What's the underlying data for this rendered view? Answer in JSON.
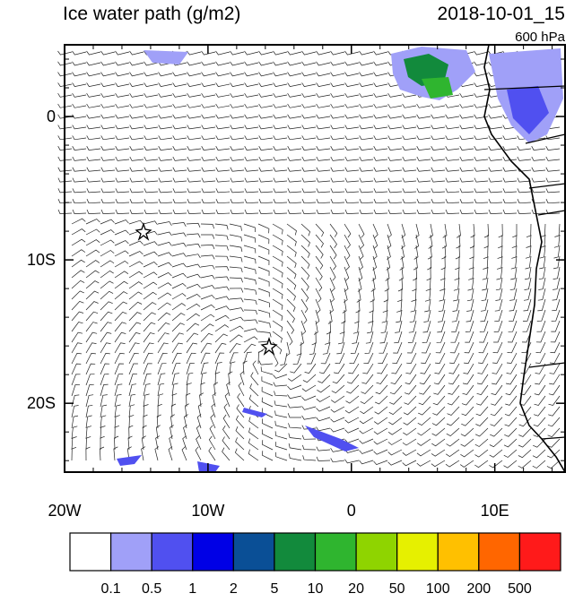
{
  "map": {
    "title": "Ice water path (g/m2)",
    "date": "2018-10-01_15",
    "level": "600 hPa",
    "lon_lim": [
      -20,
      14.9
    ],
    "lat_lim": [
      -24.8,
      5
    ],
    "lon_ticks": [
      {
        "value": -20,
        "label": "20W"
      },
      {
        "value": -10,
        "label": "10W"
      },
      {
        "value": 0,
        "label": "0"
      },
      {
        "value": 10,
        "label": "10E"
      }
    ],
    "lat_ticks": [
      {
        "value": 0,
        "label": "0"
      },
      {
        "value": -10,
        "label": "10S"
      },
      {
        "value": -20,
        "label": "20S"
      }
    ],
    "colorbar": {
      "levels": [
        0.1,
        0.5,
        1,
        2,
        5,
        10,
        20,
        50,
        100,
        200,
        500
      ],
      "colors": [
        "#ffffff",
        "#a0a0f8",
        "#5050f0",
        "#0000e6",
        "#0a4f96",
        "#128a3c",
        "#2fb52f",
        "#8fd400",
        "#e6f000",
        "#ffc000",
        "#ff6600",
        "#ff1a1a"
      ]
    }
  }
}
